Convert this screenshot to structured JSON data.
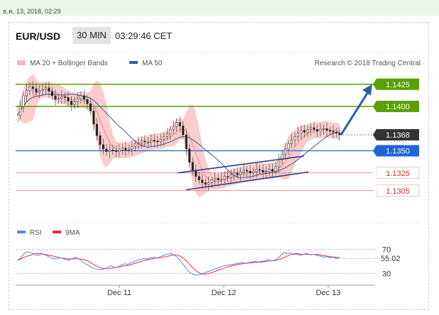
{
  "timestamp": "ธ.ค. 13, 2018, 02:29",
  "header": {
    "pair": "EUR/USD",
    "timeframe": "30 MIN",
    "time": "03:29:46 CET"
  },
  "legend": {
    "bb_label": "MA 20 + Bollinger Bands",
    "ma50_label": "MA 50",
    "credit": "Research © 2018 Trading Central"
  },
  "colors": {
    "support_resist": "#5aa000",
    "pivot": "#1f64d8",
    "weak": "#e06a6a",
    "price": "#333333",
    "bollinger": "#f6b8b8",
    "ma20": "#e48a8a",
    "ma50": "#3a5a98",
    "arrow": "#2e5d9c",
    "rsi": "#5b85e0",
    "rsi_ma": "#e03030"
  },
  "chart_data": [
    {
      "type": "candlestick",
      "ylim": [
        1.128,
        1.144
      ],
      "x_ticks": [
        "Dec 11",
        "Dec 12",
        "Dec 13"
      ],
      "levels": [
        {
          "label": "1.1425",
          "value": 1.1425,
          "style": "resistance"
        },
        {
          "label": "1.1400",
          "value": 1.14,
          "style": "resistance"
        },
        {
          "label": "1.1368",
          "value": 1.1368,
          "style": "last-price"
        },
        {
          "label": "1.1350",
          "value": 1.135,
          "style": "pivot"
        },
        {
          "label": "1.1325",
          "value": 1.1325,
          "style": "support"
        },
        {
          "label": "1.1305",
          "value": 1.1305,
          "style": "support"
        }
      ],
      "close_path": [
        1.139,
        1.14,
        1.1412,
        1.1418,
        1.1422,
        1.142,
        1.1416,
        1.1418,
        1.1419,
        1.1421,
        1.1417,
        1.1412,
        1.1408,
        1.1409,
        1.1411,
        1.141,
        1.1406,
        1.1402,
        1.1405,
        1.1409,
        1.1412,
        1.1408,
        1.1403,
        1.1395,
        1.138,
        1.1367,
        1.1357,
        1.1352,
        1.1349,
        1.1351,
        1.135,
        1.1349,
        1.1351,
        1.1353,
        1.1351,
        1.1352,
        1.1355,
        1.1358,
        1.1359,
        1.1361,
        1.136,
        1.136,
        1.1362,
        1.1361,
        1.136,
        1.1363,
        1.1366,
        1.1369,
        1.1374,
        1.1377,
        1.1382,
        1.1378,
        1.1368,
        1.1352,
        1.1337,
        1.1328,
        1.1321,
        1.1317,
        1.1314,
        1.1312,
        1.1314,
        1.1317,
        1.1319,
        1.1317,
        1.1318,
        1.1321,
        1.132,
        1.1323,
        1.1325,
        1.1323,
        1.1326,
        1.1328,
        1.1327,
        1.1325,
        1.1327,
        1.1329,
        1.1328,
        1.1326,
        1.1327,
        1.1329,
        1.1327,
        1.1332,
        1.134,
        1.1346,
        1.1352,
        1.1358,
        1.1362,
        1.1366,
        1.137,
        1.1373,
        1.1371,
        1.1374,
        1.1376,
        1.1374,
        1.1372,
        1.1374,
        1.1375,
        1.1373,
        1.1372,
        1.1371,
        1.137,
        1.1368
      ],
      "arrow": {
        "from": 1.1368,
        "to": 1.1425
      },
      "trend_channel": {
        "upper": [
          1.1325,
          1.1344
        ],
        "lower": [
          1.1306,
          1.1326
        ]
      }
    },
    {
      "type": "line",
      "series": [
        {
          "name": "RSI"
        },
        {
          "name": "9MA"
        }
      ],
      "ylim": [
        20,
        80
      ],
      "levels": [
        {
          "label": "70",
          "value": 70
        },
        {
          "label": "30",
          "value": 30
        }
      ],
      "current": {
        "label": "55.02",
        "value": 55.02
      },
      "rsi": [
        52,
        55,
        62,
        66,
        65,
        63,
        60,
        61,
        62,
        60,
        57,
        55,
        54,
        56,
        55,
        53,
        52,
        55,
        57,
        54,
        50,
        46,
        43,
        40,
        38,
        37,
        36,
        38,
        41,
        43,
        40,
        41,
        44,
        46,
        45,
        48,
        50,
        52,
        53,
        55,
        54,
        56,
        57,
        55,
        58,
        60,
        62,
        63,
        61,
        58,
        52,
        45,
        38,
        32,
        29,
        27,
        28,
        30,
        32,
        34,
        36,
        38,
        40,
        42,
        43,
        44,
        45,
        46,
        47,
        48,
        47,
        48,
        49,
        50,
        49,
        50,
        51,
        53,
        51,
        52,
        55,
        60,
        65,
        63,
        64,
        61,
        62,
        60,
        62,
        63,
        61,
        62,
        60,
        59,
        57,
        58,
        56,
        57,
        55,
        56
      ]
    }
  ]
}
